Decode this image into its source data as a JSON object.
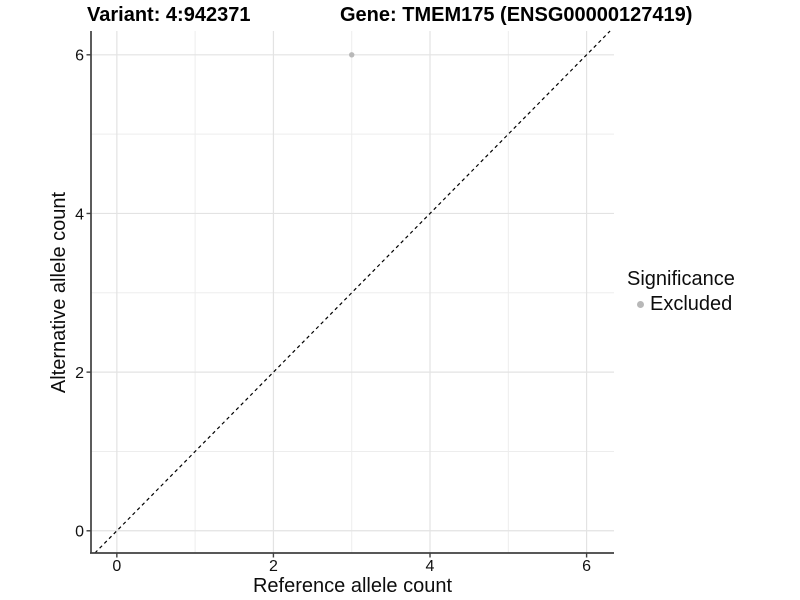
{
  "chart_data": {
    "type": "scatter",
    "title_left": "Variant: 4:942371",
    "title_right": "Gene: TMEM175 (ENSG00000127419)",
    "xlabel": "Reference allele count",
    "ylabel": "Alternative allele count",
    "xlim": [
      -0.33,
      6.35
    ],
    "ylim": [
      -0.28,
      6.3
    ],
    "x_ticks": [
      0,
      2,
      4,
      6
    ],
    "y_ticks": [
      0,
      2,
      4,
      6
    ],
    "x_minor_gridlines": [
      1,
      3,
      5
    ],
    "y_minor_gridlines": [
      1,
      3,
      5
    ],
    "grid": "on",
    "series": [
      {
        "name": "Excluded",
        "marker_color": "#b8b8b8",
        "points": [
          {
            "x": 3,
            "y": 6
          }
        ]
      }
    ],
    "reference_line": {
      "slope": 1,
      "intercept": 0,
      "style": "dashed",
      "color": "#000000"
    },
    "legend": {
      "position": "right",
      "title": "Significance",
      "entries": [
        {
          "label": "Excluded",
          "marker_color": "#b8b8b8"
        }
      ]
    }
  },
  "colors": {
    "background": "#ffffff",
    "grid_major": "#e3e3e3",
    "grid_minor": "#ededed",
    "axis_line": "#404040",
    "tick_mark": "#404040",
    "tick_label": "#111111",
    "title_text": "#000000",
    "axis_title_text": "#0d0d0d",
    "point": "#b8b8b8",
    "reference_line": "#000000"
  }
}
